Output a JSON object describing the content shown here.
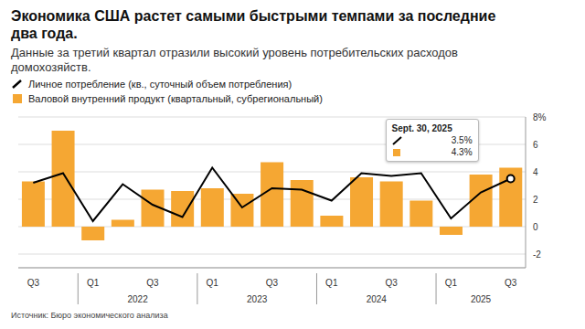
{
  "chart_data": {
    "type": "bar",
    "title": "Экономика США растет самыми быстрыми темпами за последние два года.",
    "subtitle": "Данные за третий квартал отразили высокий уровень потребительских расходов домохозяйств.",
    "source": "Источник: Бюро экономического анализа",
    "categories": [
      "Q3",
      null,
      "Q1",
      null,
      "Q3",
      null,
      "Q1",
      null,
      "Q3",
      null,
      "Q1",
      null,
      "Q3",
      null,
      "Q1",
      null,
      "Q3"
    ],
    "x_groups": [
      null,
      null,
      "2022",
      "2022",
      "2022",
      "2022",
      "2023",
      "2023",
      "2023",
      "2023",
      "2024",
      "2024",
      "2024",
      "2024",
      "2025",
      "2025",
      "2025"
    ],
    "series": [
      {
        "name": "Личное потребление (кв., суточный объем потребления)",
        "type": "line",
        "color": "#000000",
        "values": [
          3.2,
          3.9,
          0.4,
          3.1,
          1.6,
          0.7,
          4.3,
          1.4,
          2.8,
          2.7,
          1.9,
          3.9,
          3.7,
          3.9,
          0.6,
          2.5,
          3.5
        ]
      },
      {
        "name": "Валовой внутренний продукт (квартальный, субрегиональный)",
        "type": "bar",
        "color": "#f5a733",
        "values": [
          3.3,
          7.0,
          -1.0,
          0.5,
          2.7,
          2.6,
          2.8,
          2.4,
          4.7,
          3.4,
          0.8,
          3.6,
          3.3,
          1.9,
          -0.6,
          3.8,
          4.3
        ]
      }
    ],
    "annotation": {
      "date": "Sept. 30, 2025",
      "line_value": "3.5%",
      "bar_value": "4.3%"
    },
    "ylim": [
      -3,
      8
    ],
    "yticks": [
      -2,
      0,
      2,
      4,
      6,
      {
        "value": 8,
        "label": "8%"
      }
    ],
    "grid": true
  }
}
